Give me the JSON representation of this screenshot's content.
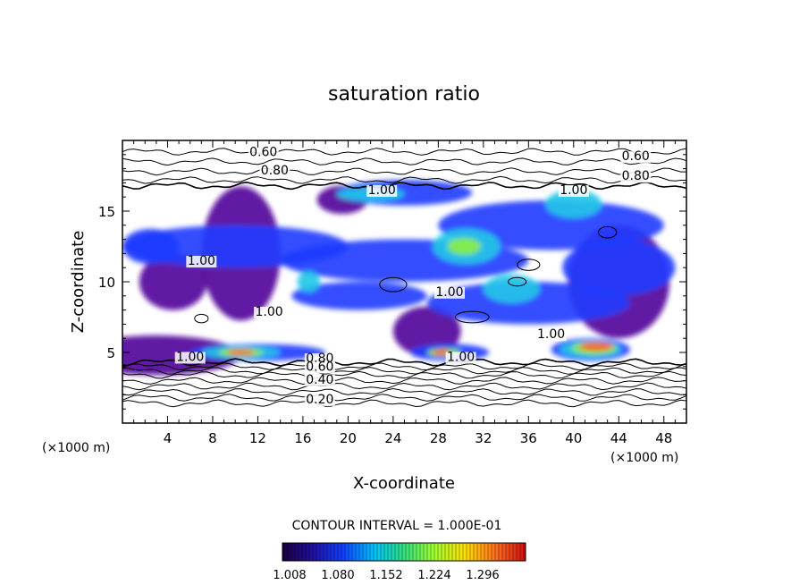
{
  "chart_data": {
    "type": "heatmap",
    "title": "saturation ratio",
    "xlabel": "X-coordinate",
    "ylabel": "Z-coordinate",
    "x_unit": "(×1000 m)",
    "y_unit": "(×1000 m)",
    "xlim": [
      0,
      50
    ],
    "ylim": [
      0,
      20
    ],
    "x_ticks": [
      4,
      8,
      12,
      16,
      20,
      24,
      28,
      32,
      36,
      40,
      44,
      48
    ],
    "y_ticks": [
      5,
      10,
      15
    ],
    "contour_interval_text": "CONTOUR INTERVAL = 1.000E-01",
    "colorbar": {
      "ticks": [
        "1.008",
        "1.080",
        "1.152",
        "1.224",
        "1.296"
      ],
      "colors": [
        "#1a0040",
        "#2010a0",
        "#1040ff",
        "#00c0ff",
        "#30e080",
        "#a0ff30",
        "#ffe000",
        "#ff7020",
        "#d01010"
      ]
    },
    "contour_labels": [
      {
        "text": "0.60",
        "x": 12.5,
        "z": 18.9
      },
      {
        "text": "0.60",
        "x": 45.5,
        "z": 18.6
      },
      {
        "text": "0.80",
        "x": 13.5,
        "z": 17.6
      },
      {
        "text": "0.80",
        "x": 45.5,
        "z": 17.2
      },
      {
        "text": "1.00",
        "x": 23.0,
        "z": 16.2
      },
      {
        "text": "1.00",
        "x": 40.0,
        "z": 16.2
      },
      {
        "text": "1.00",
        "x": 7.0,
        "z": 11.2
      },
      {
        "text": "1.00",
        "x": 29.0,
        "z": 9.0
      },
      {
        "text": "1.00",
        "x": 13.0,
        "z": 7.6
      },
      {
        "text": "1.00",
        "x": 38.0,
        "z": 6.0
      },
      {
        "text": "1.00",
        "x": 6.0,
        "z": 4.4
      },
      {
        "text": "1.00",
        "x": 30.0,
        "z": 4.4
      },
      {
        "text": "0.80",
        "x": 17.5,
        "z": 4.3
      },
      {
        "text": "0.60",
        "x": 17.5,
        "z": 3.7
      },
      {
        "text": "0.40",
        "x": 17.5,
        "z": 2.8
      },
      {
        "text": "0.20",
        "x": 17.5,
        "z": 1.4
      }
    ],
    "regions": [
      {
        "level": 0,
        "x": 3.0,
        "z": 4.8,
        "w": 15.0,
        "h": 2.8
      },
      {
        "level": 0,
        "x": 10.5,
        "z": 12.0,
        "w": 7.0,
        "h": 9.5
      },
      {
        "level": 0,
        "x": 4.5,
        "z": 10.0,
        "w": 6.0,
        "h": 4.0
      },
      {
        "level": 0,
        "x": 19.5,
        "z": 15.8,
        "w": 4.5,
        "h": 2.0
      },
      {
        "level": 0,
        "x": 27.0,
        "z": 6.5,
        "w": 6.0,
        "h": 3.5
      },
      {
        "level": 0,
        "x": 44.0,
        "z": 10.0,
        "w": 9.0,
        "h": 8.0
      },
      {
        "level": 1,
        "x": 10.0,
        "z": 12.5,
        "w": 20.0,
        "h": 3.0
      },
      {
        "level": 1,
        "x": 25.0,
        "z": 11.5,
        "w": 22.0,
        "h": 3.0
      },
      {
        "level": 1,
        "x": 38.0,
        "z": 14.0,
        "w": 20.0,
        "h": 3.5
      },
      {
        "level": 1,
        "x": 25.0,
        "z": 16.3,
        "w": 12.0,
        "h": 1.8
      },
      {
        "level": 1,
        "x": 36.0,
        "z": 8.5,
        "w": 18.0,
        "h": 3.0
      },
      {
        "level": 1,
        "x": 44.0,
        "z": 11.0,
        "w": 10.0,
        "h": 4.0
      },
      {
        "level": 1,
        "x": 12.0,
        "z": 5.0,
        "w": 12.0,
        "h": 1.2
      },
      {
        "level": 1,
        "x": 29.0,
        "z": 5.0,
        "w": 7.0,
        "h": 1.2
      },
      {
        "level": 1,
        "x": 41.5,
        "z": 5.2,
        "w": 7.0,
        "h": 1.6
      },
      {
        "level": 1,
        "x": 2.5,
        "z": 12.5,
        "w": 5.0,
        "h": 2.5
      },
      {
        "level": 1,
        "x": 21.0,
        "z": 9.0,
        "w": 12.0,
        "h": 2.0
      },
      {
        "level": 2,
        "x": 30.5,
        "z": 12.5,
        "w": 6.0,
        "h": 2.5
      },
      {
        "level": 2,
        "x": 40.0,
        "z": 15.5,
        "w": 5.0,
        "h": 2.0
      },
      {
        "level": 2,
        "x": 22.0,
        "z": 16.2,
        "w": 6.0,
        "h": 1.0
      },
      {
        "level": 2,
        "x": 34.5,
        "z": 9.5,
        "w": 5.0,
        "h": 2.0
      },
      {
        "level": 2,
        "x": 10.5,
        "z": 5.0,
        "w": 7.0,
        "h": 0.9
      },
      {
        "level": 2,
        "x": 41.5,
        "z": 5.2,
        "w": 5.5,
        "h": 1.2
      },
      {
        "level": 2,
        "x": 16.5,
        "z": 10.0,
        "w": 2.0,
        "h": 1.5
      },
      {
        "level": 3,
        "x": 30.3,
        "z": 12.5,
        "w": 3.0,
        "h": 1.2
      },
      {
        "level": 3,
        "x": 10.5,
        "z": 5.0,
        "w": 4.0,
        "h": 0.6
      },
      {
        "level": 3,
        "x": 41.8,
        "z": 5.3,
        "w": 4.0,
        "h": 0.9
      },
      {
        "level": 3,
        "x": 28.5,
        "z": 5.0,
        "w": 3.0,
        "h": 0.6
      },
      {
        "level": 4,
        "x": 42.0,
        "z": 5.4,
        "w": 3.0,
        "h": 0.6
      },
      {
        "level": 4,
        "x": 10.5,
        "z": 5.0,
        "w": 2.5,
        "h": 0.4
      },
      {
        "level": 4,
        "x": 28.3,
        "z": 5.0,
        "w": 1.5,
        "h": 0.4
      }
    ],
    "background_contours": [
      19.2,
      18.5,
      17.8,
      17.2,
      16.8,
      4.3,
      4.0,
      3.7,
      3.4,
      3.0,
      2.6,
      2.2,
      1.8,
      1.4
    ]
  }
}
